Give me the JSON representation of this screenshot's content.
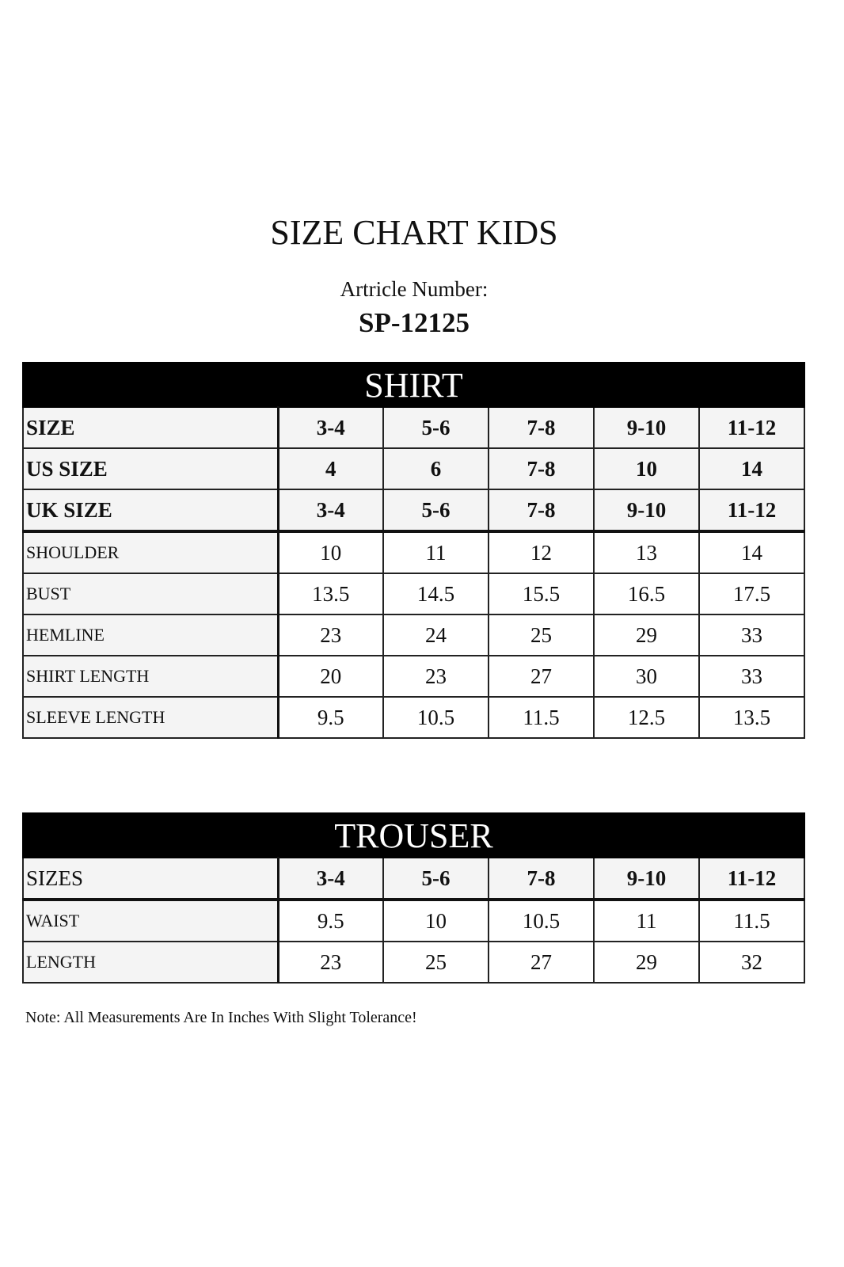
{
  "title": "SIZE CHART KIDS",
  "article_label": "Artricle Number:",
  "article_number": "SP-12125",
  "shirt": {
    "heading": "SHIRT",
    "header_rows": [
      {
        "label": "SIZE",
        "values": [
          "3-4",
          "5-6",
          "7-8",
          "9-10",
          "11-12"
        ]
      },
      {
        "label": "US SIZE",
        "values": [
          "4",
          "6",
          "7-8",
          "10",
          "14"
        ]
      },
      {
        "label": "UK SIZE",
        "values": [
          "3-4",
          "5-6",
          "7-8",
          "9-10",
          "11-12"
        ]
      }
    ],
    "rows": [
      {
        "label": "SHOULDER",
        "values": [
          "10",
          "11",
          "12",
          "13",
          "14"
        ]
      },
      {
        "label": "BUST",
        "values": [
          "13.5",
          "14.5",
          "15.5",
          "16.5",
          "17.5"
        ]
      },
      {
        "label": "HEMLINE",
        "values": [
          "23",
          "24",
          "25",
          "29",
          "33"
        ]
      },
      {
        "label": "SHIRT LENGTH",
        "values": [
          "20",
          "23",
          "27",
          "30",
          "33"
        ]
      },
      {
        "label": "SLEEVE LENGTH",
        "values": [
          "9.5",
          "10.5",
          "11.5",
          "12.5",
          "13.5"
        ]
      }
    ]
  },
  "trouser": {
    "heading": "TROUSER",
    "header_rows": [
      {
        "label": "SIZES",
        "values": [
          "3-4",
          "5-6",
          "7-8",
          "9-10",
          "11-12"
        ]
      }
    ],
    "rows": [
      {
        "label": "WAIST",
        "values": [
          "9.5",
          "10",
          "10.5",
          "11",
          "11.5"
        ]
      },
      {
        "label": "LENGTH",
        "values": [
          "23",
          "25",
          "27",
          "29",
          "32"
        ]
      }
    ]
  },
  "note": "Note: All Measurements Are In Inches With Slight Tolerance!"
}
